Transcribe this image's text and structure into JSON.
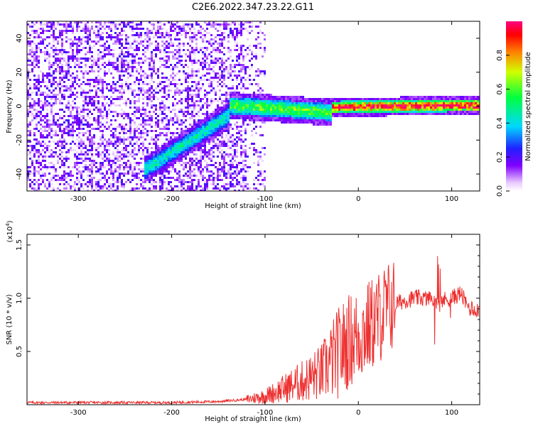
{
  "title": "C2E6.2022.347.23.22.G11",
  "chart_data": [
    {
      "type": "heatmap",
      "xlabel": "Height of straight line (km)",
      "ylabel": "Frequency (Hz)",
      "xlim": [
        -355,
        130
      ],
      "ylim": [
        -50,
        50
      ],
      "xticks": [
        -300,
        -200,
        -100,
        0,
        100
      ],
      "yticks": [
        -40,
        -20,
        0,
        20,
        40
      ],
      "colorbar": {
        "label": "Normalized spectral amplitude",
        "range": [
          0,
          1
        ],
        "ticks": [
          "0.0",
          "0.2",
          "0.4",
          "0.6",
          "0.8"
        ]
      },
      "features": [
        {
          "x_start": -230,
          "x_end": -140,
          "freq_start": -37,
          "freq_end": -5,
          "amplitude": 0.35
        },
        {
          "x_start": -140,
          "x_end": -30,
          "freq_start": 1,
          "freq_end": -3,
          "amplitude": 0.5
        },
        {
          "x_start": -30,
          "x_end": 130,
          "freq_start": 0,
          "freq_end": 1,
          "amplitude": 0.85
        }
      ]
    },
    {
      "type": "line",
      "xlabel": "Height of straight line (km)",
      "ylabel": "SNR (10 * v/v)",
      "yscale_label": "(x10",
      "yscale_exp": "4",
      "yscale_close": ")",
      "xlim": [
        -355,
        130
      ],
      "ylim": [
        0,
        1.6
      ],
      "xticks": [
        -300,
        -200,
        -100,
        0,
        100
      ],
      "yticks": [
        "0.5",
        "1.0",
        "1.5"
      ],
      "color": "#ee3030",
      "series": [
        {
          "x": [
            -355,
            -300,
            -250,
            -200,
            -150,
            -120,
            -100,
            -80,
            -60,
            -40,
            -30,
            -20,
            -10,
            0,
            10,
            20,
            30,
            40,
            50,
            60,
            70,
            80,
            90,
            100,
            110,
            115,
            120,
            130
          ],
          "y": [
            0.02,
            0.02,
            0.02,
            0.02,
            0.03,
            0.05,
            0.08,
            0.15,
            0.22,
            0.3,
            0.4,
            0.5,
            0.6,
            0.65,
            0.72,
            0.8,
            0.9,
            0.95,
            0.98,
            1.0,
            1.0,
            0.98,
            0.98,
            1.0,
            1.05,
            0.95,
            0.9,
            0.9
          ]
        }
      ]
    }
  ]
}
